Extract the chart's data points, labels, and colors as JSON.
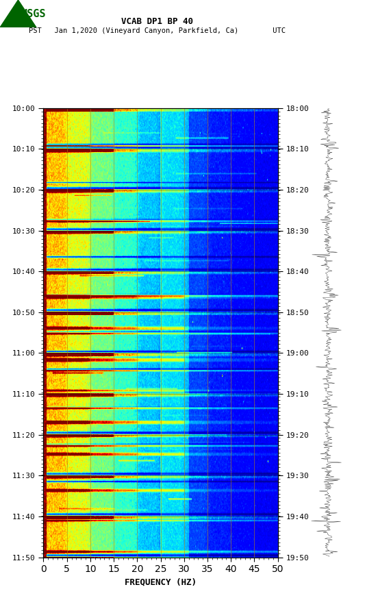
{
  "title_line1": "VCAB DP1 BP 40",
  "title_line2": "PST   Jan 1,2020 (Vineyard Canyon, Parkfield, Ca)        UTC",
  "xlabel": "FREQUENCY (HZ)",
  "freq_min": 0,
  "freq_max": 50,
  "freq_ticks": [
    0,
    5,
    10,
    15,
    20,
    25,
    30,
    35,
    40,
    45,
    50
  ],
  "time_labels_left": [
    "10:00",
    "10:10",
    "10:20",
    "10:30",
    "10:40",
    "10:50",
    "11:00",
    "11:10",
    "11:20",
    "11:30",
    "11:40",
    "11:50"
  ],
  "time_labels_right": [
    "18:00",
    "18:10",
    "18:20",
    "18:30",
    "18:40",
    "18:50",
    "19:00",
    "19:10",
    "19:20",
    "19:30",
    "19:40",
    "19:50"
  ],
  "n_time_steps": 720,
  "n_freq_bins": 500,
  "background_color": "#ffffff",
  "usgs_color": "#006400",
  "vertical_lines_freq": [
    5,
    10,
    15,
    20,
    25,
    30,
    35,
    40,
    45
  ],
  "colormap": "jet",
  "waveform_color": "#000000",
  "tick_label_fontsize": 8,
  "title_fontsize": 9,
  "xlabel_fontsize": 9
}
